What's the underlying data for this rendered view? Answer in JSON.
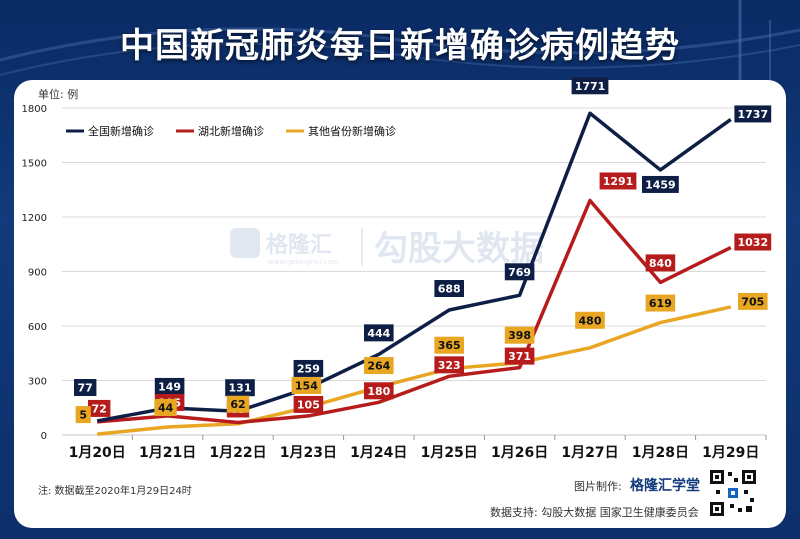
{
  "header": {
    "title": "中国新冠肺炎每日新增确诊病例趋势"
  },
  "unit_label": "单位: 例",
  "note": "注: 数据截至2020年1月29日24时",
  "credit": {
    "label": "图片制作:",
    "brand": "格隆汇学堂"
  },
  "support": "数据支持: 勾股大数据 国家卫生健康委员会",
  "watermark": {
    "brand": "格隆汇",
    "site": "www.gelonghui.com",
    "partner": "勾股大数据"
  },
  "colors": {
    "national": "#0e1f46",
    "hubei": "#b71c1c",
    "other": "#e8a623",
    "grid": "#d9d9d9"
  },
  "chart_data": {
    "type": "line",
    "categories": [
      "1月20日",
      "1月21日",
      "1月22日",
      "1月23日",
      "1月24日",
      "1月25日",
      "1月26日",
      "1月27日",
      "1月28日",
      "1月29日"
    ],
    "ylim": [
      0,
      1800
    ],
    "yticks": [
      0,
      300,
      600,
      900,
      1200,
      1500,
      1800
    ],
    "grid": "horizontal",
    "legend_position": "top-left",
    "series": [
      {
        "name": "全国新增确诊",
        "color": "#0e1f46",
        "values": [
          77,
          149,
          131,
          259,
          444,
          688,
          769,
          1771,
          1459,
          1737
        ]
      },
      {
        "name": "湖北新增确诊",
        "color": "#b71c1c",
        "values": [
          72,
          105,
          69,
          105,
          180,
          323,
          371,
          1291,
          840,
          1032
        ]
      },
      {
        "name": "其他省份新增确诊",
        "color": "#e8a623",
        "values": [
          5,
          44,
          62,
          154,
          264,
          365,
          398,
          480,
          619,
          705
        ]
      }
    ]
  }
}
